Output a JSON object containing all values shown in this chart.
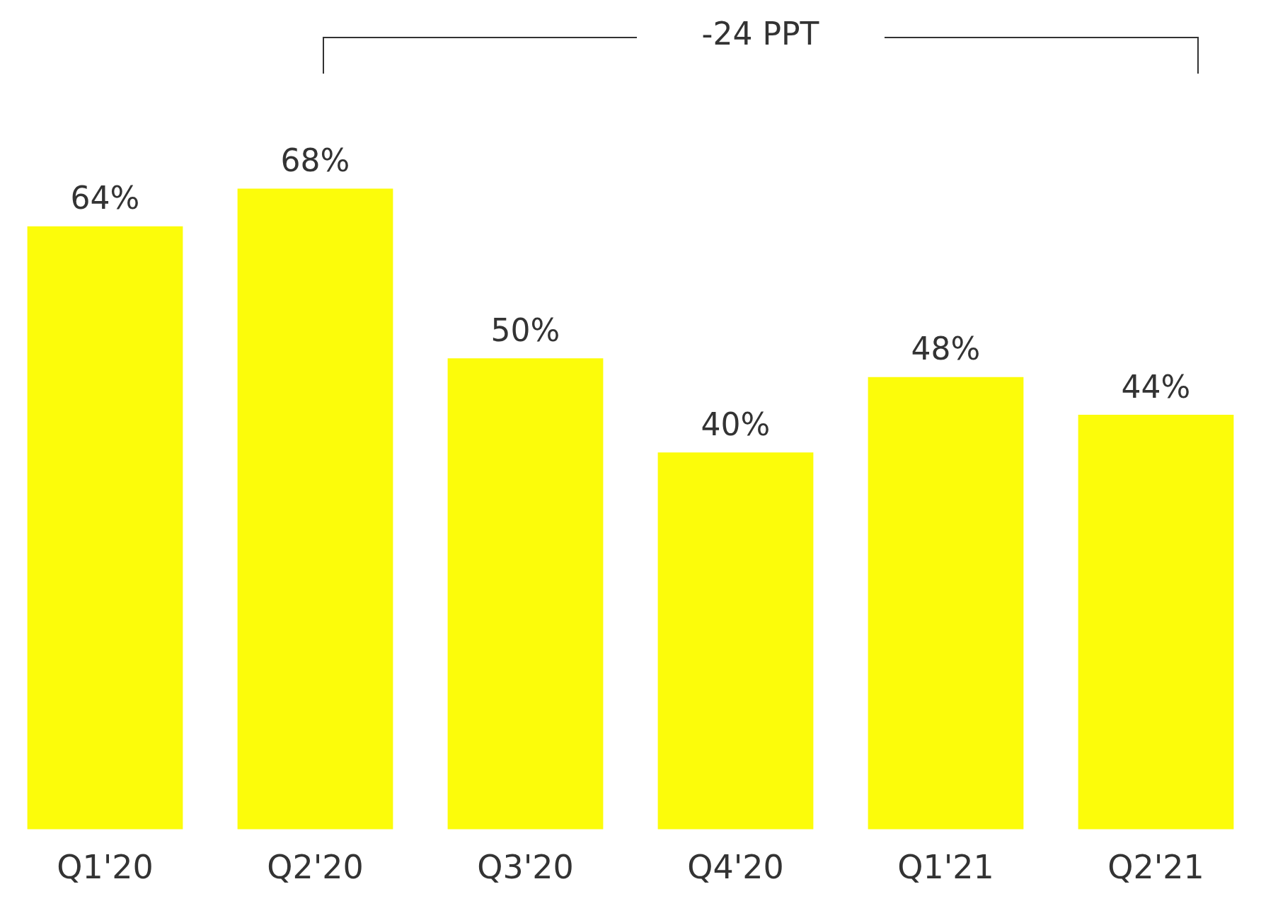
{
  "chart_data": {
    "type": "bar",
    "categories": [
      "Q1'20",
      "Q2'20",
      "Q3'20",
      "Q4'20",
      "Q1'21",
      "Q2'21"
    ],
    "values": [
      64,
      68,
      50,
      40,
      48,
      44
    ],
    "color": "#fcfc0a",
    "data_labels": true,
    "value_labels": [
      "64%",
      "68%",
      "50%",
      "40%",
      "48%",
      "44%"
    ],
    "grid": false,
    "legend": false,
    "tick_labels": "x",
    "annotations": [
      "-24 PPT"
    ]
  }
}
